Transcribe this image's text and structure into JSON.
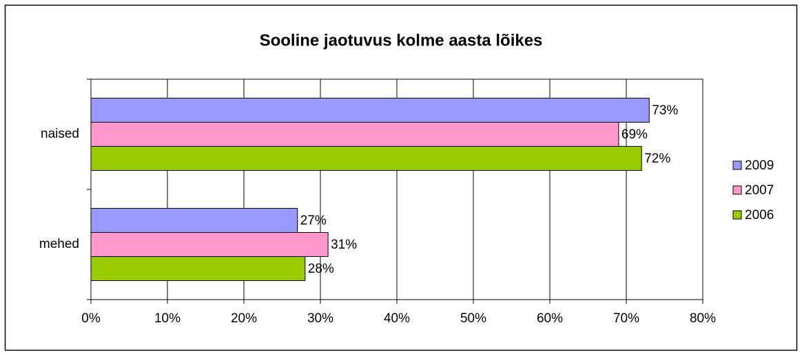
{
  "chart_data": {
    "type": "hbar",
    "title": "Sooline jaotuvus kolme aasta lõikes",
    "categories": [
      "naised",
      "mehed"
    ],
    "series": [
      {
        "name": "2009",
        "color": "#9999ff",
        "values": [
          73,
          27
        ],
        "value_labels": [
          "73%",
          "27%"
        ]
      },
      {
        "name": "2007",
        "color": "#ff99cc",
        "values": [
          69,
          31
        ],
        "value_labels": [
          "69%",
          "31%"
        ]
      },
      {
        "name": "2006",
        "color": "#99cc00",
        "values": [
          72,
          28
        ],
        "value_labels": [
          "72%",
          "28%"
        ]
      }
    ],
    "xlim": [
      0,
      80
    ],
    "xticks": [
      {
        "value": 0,
        "label": "0%"
      },
      {
        "value": 10,
        "label": "10%"
      },
      {
        "value": 20,
        "label": "20%"
      },
      {
        "value": 30,
        "label": "30%"
      },
      {
        "value": 40,
        "label": "40%"
      },
      {
        "value": 50,
        "label": "50%"
      },
      {
        "value": 60,
        "label": "60%"
      },
      {
        "value": 70,
        "label": "70%"
      },
      {
        "value": 80,
        "label": "80%"
      }
    ],
    "grid": true,
    "legend": "right"
  }
}
